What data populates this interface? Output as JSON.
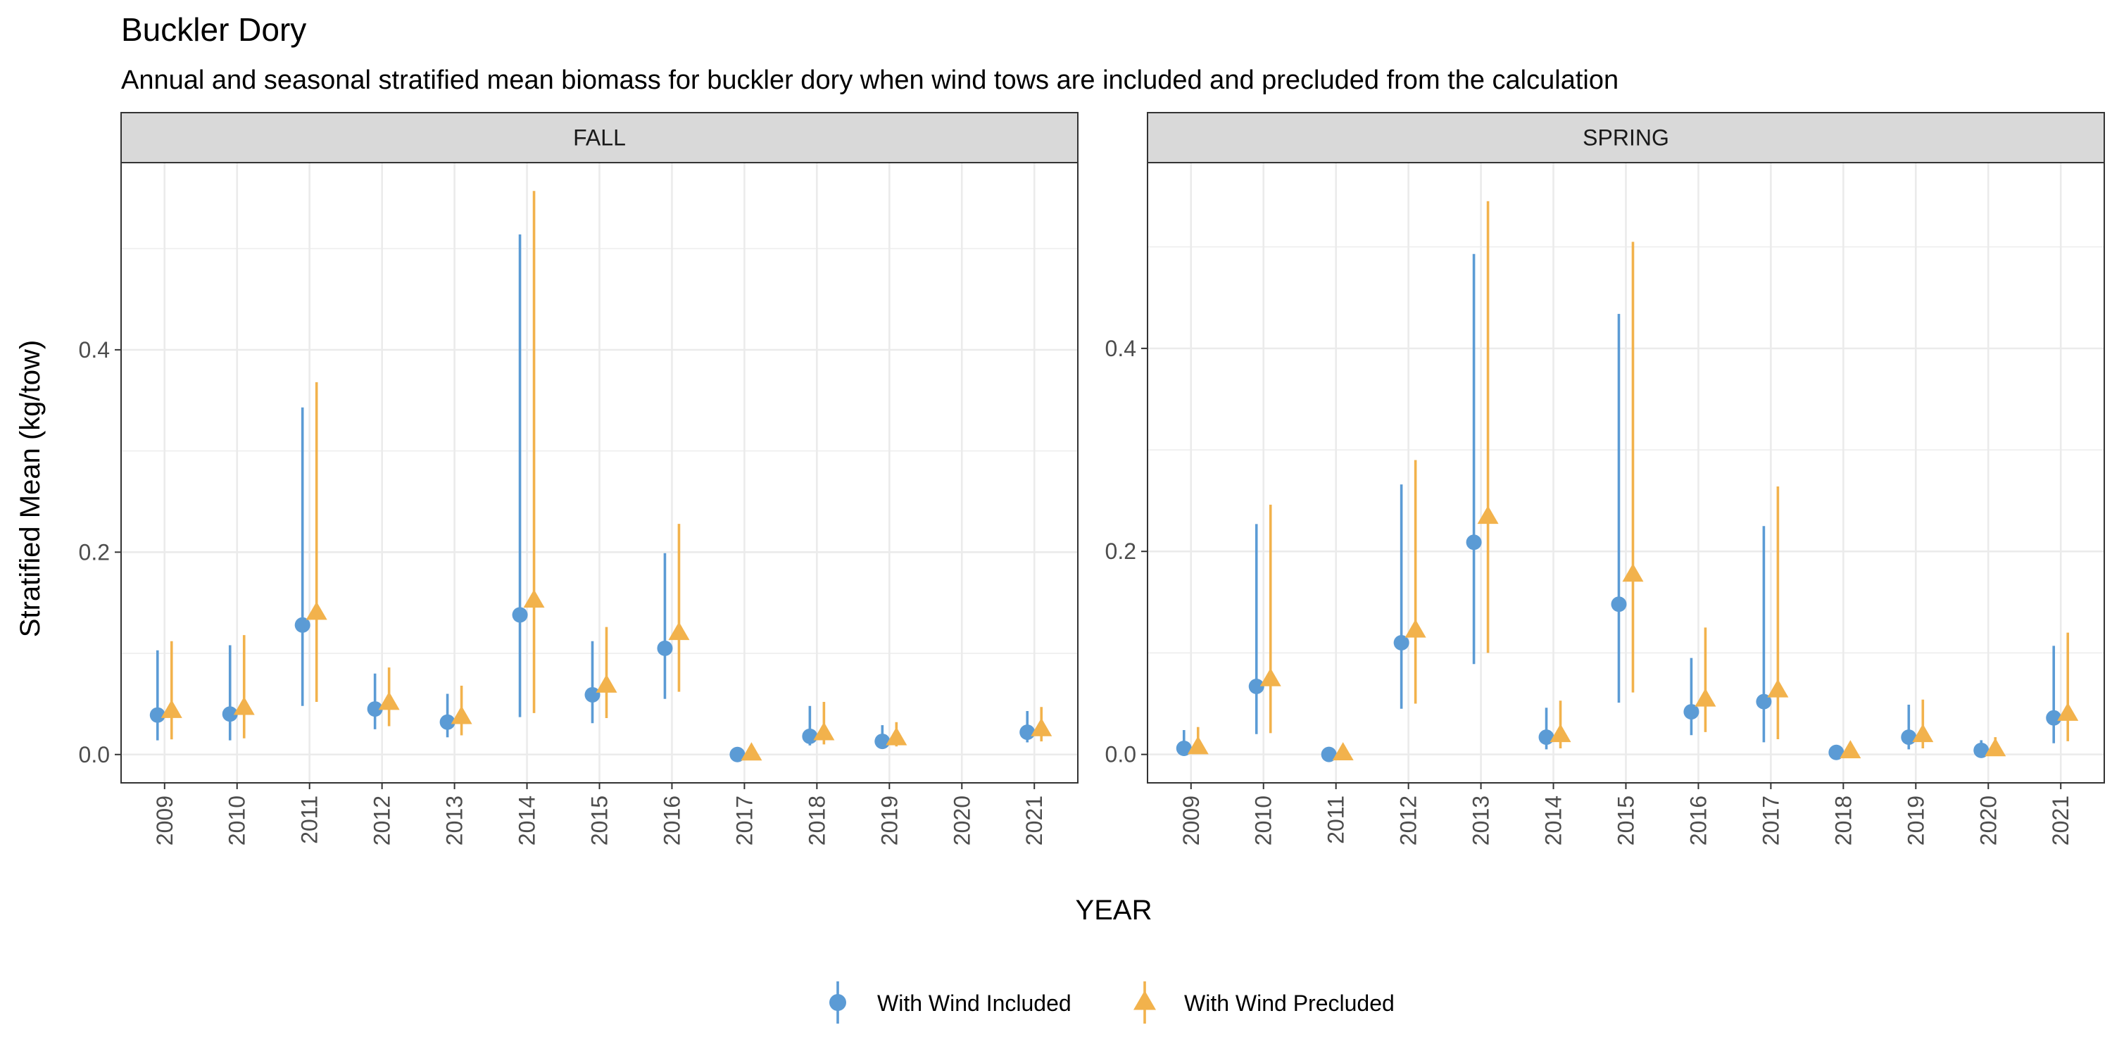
{
  "title": "Buckler Dory",
  "subtitle": "Annual and seasonal stratified mean biomass for buckler dory when wind tows are included and precluded from the calculation",
  "colors": {
    "included": "#5B9BD5",
    "precluded": "#F2B24C",
    "strip_fill": "#D9D9D9",
    "grid": "#EBEBEB",
    "axis_text": "#4D4D4D"
  },
  "chart_data": {
    "type": "scatter",
    "xlabel": "YEAR",
    "ylabel": "Stratified Mean (kg/tow)",
    "legend_position": "bottom",
    "grid": true,
    "categories": [
      "2009",
      "2010",
      "2011",
      "2012",
      "2013",
      "2014",
      "2015",
      "2016",
      "2017",
      "2018",
      "2019",
      "2020",
      "2021"
    ],
    "series": [
      {
        "name": "With Wind Included",
        "marker": "circle-icon",
        "color": "#5B9BD5"
      },
      {
        "name": "With Wind Precluded",
        "marker": "triangle-icon",
        "color": "#F2B24C"
      }
    ],
    "panels": [
      {
        "name": "FALL",
        "ylim": [
          -0.028,
          0.585
        ],
        "yticks": [
          0.0,
          0.2,
          0.4
        ],
        "ytick_labels": [
          "0.0",
          "0.2",
          "0.4"
        ],
        "included": [
          {
            "year": "2009",
            "mean": 0.039,
            "low": 0.014,
            "high": 0.103
          },
          {
            "year": "2010",
            "mean": 0.04,
            "low": 0.014,
            "high": 0.108
          },
          {
            "year": "2011",
            "mean": 0.128,
            "low": 0.048,
            "high": 0.343
          },
          {
            "year": "2012",
            "mean": 0.045,
            "low": 0.025,
            "high": 0.08
          },
          {
            "year": "2013",
            "mean": 0.032,
            "low": 0.017,
            "high": 0.06
          },
          {
            "year": "2014",
            "mean": 0.138,
            "low": 0.037,
            "high": 0.514
          },
          {
            "year": "2015",
            "mean": 0.059,
            "low": 0.031,
            "high": 0.112
          },
          {
            "year": "2016",
            "mean": 0.105,
            "low": 0.055,
            "high": 0.199
          },
          {
            "year": "2017",
            "mean": 0.0,
            "low": 0.0,
            "high": 0.0
          },
          {
            "year": "2018",
            "mean": 0.018,
            "low": 0.009,
            "high": 0.048
          },
          {
            "year": "2019",
            "mean": 0.013,
            "low": 0.006,
            "high": 0.029
          },
          {
            "year": "2021",
            "mean": 0.022,
            "low": 0.012,
            "high": 0.043
          }
        ],
        "precluded": [
          {
            "year": "2009",
            "mean": 0.043,
            "low": 0.015,
            "high": 0.112
          },
          {
            "year": "2010",
            "mean": 0.046,
            "low": 0.016,
            "high": 0.118
          },
          {
            "year": "2011",
            "mean": 0.14,
            "low": 0.052,
            "high": 0.368
          },
          {
            "year": "2012",
            "mean": 0.051,
            "low": 0.028,
            "high": 0.086
          },
          {
            "year": "2013",
            "mean": 0.037,
            "low": 0.019,
            "high": 0.068
          },
          {
            "year": "2014",
            "mean": 0.152,
            "low": 0.041,
            "high": 0.557
          },
          {
            "year": "2015",
            "mean": 0.068,
            "low": 0.036,
            "high": 0.126
          },
          {
            "year": "2016",
            "mean": 0.12,
            "low": 0.062,
            "high": 0.228
          },
          {
            "year": "2017",
            "mean": 0.001,
            "low": 0.0,
            "high": 0.003
          },
          {
            "year": "2018",
            "mean": 0.021,
            "low": 0.01,
            "high": 0.052
          },
          {
            "year": "2019",
            "mean": 0.016,
            "low": 0.008,
            "high": 0.032
          },
          {
            "year": "2021",
            "mean": 0.025,
            "low": 0.013,
            "high": 0.047
          }
        ]
      },
      {
        "name": "SPRING",
        "ylim": [
          -0.028,
          0.583
        ],
        "yticks": [
          0.0,
          0.2,
          0.4
        ],
        "ytick_labels": [
          "0.0",
          "0.2",
          "0.4"
        ],
        "included": [
          {
            "year": "2009",
            "mean": 0.006,
            "low": 0.001,
            "high": 0.024
          },
          {
            "year": "2010",
            "mean": 0.067,
            "low": 0.02,
            "high": 0.227
          },
          {
            "year": "2011",
            "mean": 0.0,
            "low": 0.0,
            "high": 0.0
          },
          {
            "year": "2012",
            "mean": 0.11,
            "low": 0.045,
            "high": 0.266
          },
          {
            "year": "2013",
            "mean": 0.209,
            "low": 0.089,
            "high": 0.493
          },
          {
            "year": "2014",
            "mean": 0.017,
            "low": 0.005,
            "high": 0.046
          },
          {
            "year": "2015",
            "mean": 0.148,
            "low": 0.051,
            "high": 0.434
          },
          {
            "year": "2016",
            "mean": 0.042,
            "low": 0.019,
            "high": 0.095
          },
          {
            "year": "2017",
            "mean": 0.052,
            "low": 0.012,
            "high": 0.225
          },
          {
            "year": "2018",
            "mean": 0.002,
            "low": 0.0,
            "high": 0.007
          },
          {
            "year": "2019",
            "mean": 0.017,
            "low": 0.005,
            "high": 0.049
          },
          {
            "year": "2020",
            "mean": 0.004,
            "low": 0.0,
            "high": 0.014
          },
          {
            "year": "2021",
            "mean": 0.036,
            "low": 0.011,
            "high": 0.107
          }
        ],
        "precluded": [
          {
            "year": "2009",
            "mean": 0.007,
            "low": 0.001,
            "high": 0.027
          },
          {
            "year": "2010",
            "mean": 0.074,
            "low": 0.021,
            "high": 0.246
          },
          {
            "year": "2011",
            "mean": 0.001,
            "low": 0.0,
            "high": 0.002
          },
          {
            "year": "2012",
            "mean": 0.122,
            "low": 0.05,
            "high": 0.29
          },
          {
            "year": "2013",
            "mean": 0.234,
            "low": 0.1,
            "high": 0.545
          },
          {
            "year": "2014",
            "mean": 0.019,
            "low": 0.006,
            "high": 0.053
          },
          {
            "year": "2015",
            "mean": 0.177,
            "low": 0.061,
            "high": 0.505
          },
          {
            "year": "2016",
            "mean": 0.054,
            "low": 0.022,
            "high": 0.125
          },
          {
            "year": "2017",
            "mean": 0.063,
            "low": 0.015,
            "high": 0.264
          },
          {
            "year": "2018",
            "mean": 0.003,
            "low": 0.0,
            "high": 0.008
          },
          {
            "year": "2019",
            "mean": 0.019,
            "low": 0.006,
            "high": 0.054
          },
          {
            "year": "2020",
            "mean": 0.005,
            "low": 0.0,
            "high": 0.017
          },
          {
            "year": "2021",
            "mean": 0.04,
            "low": 0.013,
            "high": 0.12
          }
        ]
      }
    ]
  }
}
